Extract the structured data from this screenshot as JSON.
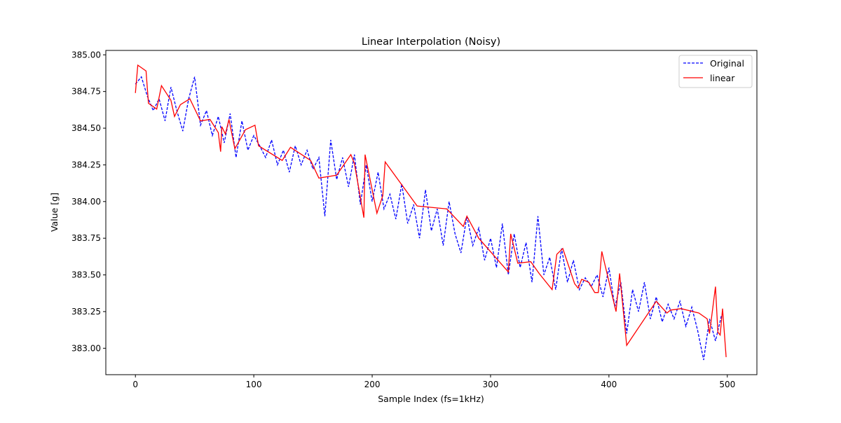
{
  "chart_data": {
    "type": "line",
    "title": "Linear Interpolation (Noisy)",
    "xlabel": "Sample Index (fs=1kHz)",
    "ylabel": "Value [g]",
    "xlim": [
      -25,
      525
    ],
    "ylim": [
      382.82,
      385.03
    ],
    "xticks": [
      0,
      100,
      200,
      300,
      400,
      500
    ],
    "xtick_labels": [
      "0",
      "100",
      "200",
      "300",
      "400",
      "500"
    ],
    "yticks": [
      383.0,
      383.25,
      383.5,
      383.75,
      384.0,
      384.25,
      384.5,
      384.75,
      385.0
    ],
    "ytick_labels": [
      "383.00",
      "383.25",
      "383.50",
      "383.75",
      "384.00",
      "384.25",
      "384.50",
      "384.75",
      "385.00"
    ],
    "grid": false,
    "legend_position": "top-right",
    "series": [
      {
        "name": "Original",
        "color": "#0000ff",
        "style": "dashed",
        "x_start": 0,
        "x_step": 5,
        "values": [
          384.8,
          384.85,
          384.72,
          384.62,
          384.7,
          384.55,
          384.78,
          384.62,
          384.48,
          384.7,
          384.85,
          384.52,
          384.62,
          384.45,
          384.58,
          384.4,
          384.6,
          384.3,
          384.55,
          384.35,
          384.45,
          384.38,
          384.3,
          384.42,
          384.25,
          384.35,
          384.2,
          384.38,
          384.25,
          384.35,
          384.22,
          384.3,
          383.9,
          384.42,
          384.15,
          384.3,
          384.1,
          384.32,
          383.98,
          384.25,
          384.0,
          384.2,
          383.95,
          384.05,
          383.88,
          384.12,
          383.85,
          383.98,
          383.75,
          384.08,
          383.8,
          383.95,
          383.7,
          384.0,
          383.78,
          383.65,
          383.9,
          383.7,
          383.82,
          383.6,
          383.75,
          383.55,
          383.85,
          383.5,
          383.78,
          383.55,
          383.72,
          383.45,
          383.9,
          383.5,
          383.62,
          383.4,
          383.68,
          383.45,
          383.6,
          383.4,
          383.48,
          383.42,
          383.5,
          383.35,
          383.55,
          383.28,
          383.45,
          383.1,
          383.4,
          383.25,
          383.45,
          383.2,
          383.35,
          383.18,
          383.3,
          383.2,
          383.32,
          383.15,
          383.28,
          383.12,
          382.92,
          383.2,
          383.05,
          383.22
        ]
      },
      {
        "name": "linear",
        "color": "#ff0000",
        "style": "solid",
        "x": [
          0,
          2,
          9,
          11,
          18,
          22,
          30,
          33,
          38,
          46,
          55,
          63,
          70,
          72,
          73,
          76,
          79,
          84,
          93,
          101,
          104,
          124,
          131,
          148,
          155,
          170,
          182,
          185,
          193,
          194,
          204,
          209,
          211,
          238,
          263,
          277,
          280,
          290,
          315,
          317,
          323,
          334,
          341,
          352,
          356,
          361,
          371,
          374,
          377,
          383,
          388,
          391,
          394,
          406,
          409,
          415,
          440,
          449,
          452,
          461,
          476,
          483,
          485,
          490,
          492,
          494,
          496,
          499
        ],
        "values": [
          384.74,
          384.93,
          384.89,
          384.67,
          384.63,
          384.79,
          384.69,
          384.58,
          384.66,
          384.7,
          384.55,
          384.56,
          384.47,
          384.34,
          384.51,
          384.46,
          384.56,
          384.36,
          384.49,
          384.52,
          384.38,
          384.28,
          384.37,
          384.28,
          384.16,
          384.18,
          384.32,
          384.26,
          383.89,
          384.32,
          383.92,
          384.04,
          384.27,
          383.97,
          383.95,
          383.83,
          383.9,
          383.75,
          383.52,
          383.78,
          383.58,
          383.59,
          383.51,
          383.4,
          383.64,
          383.68,
          383.44,
          383.41,
          383.47,
          383.45,
          383.38,
          383.38,
          383.66,
          383.25,
          383.51,
          383.02,
          383.32,
          383.24,
          383.26,
          383.27,
          383.24,
          383.2,
          383.1,
          383.42,
          383.11,
          383.09,
          383.27,
          382.94
        ]
      }
    ]
  }
}
